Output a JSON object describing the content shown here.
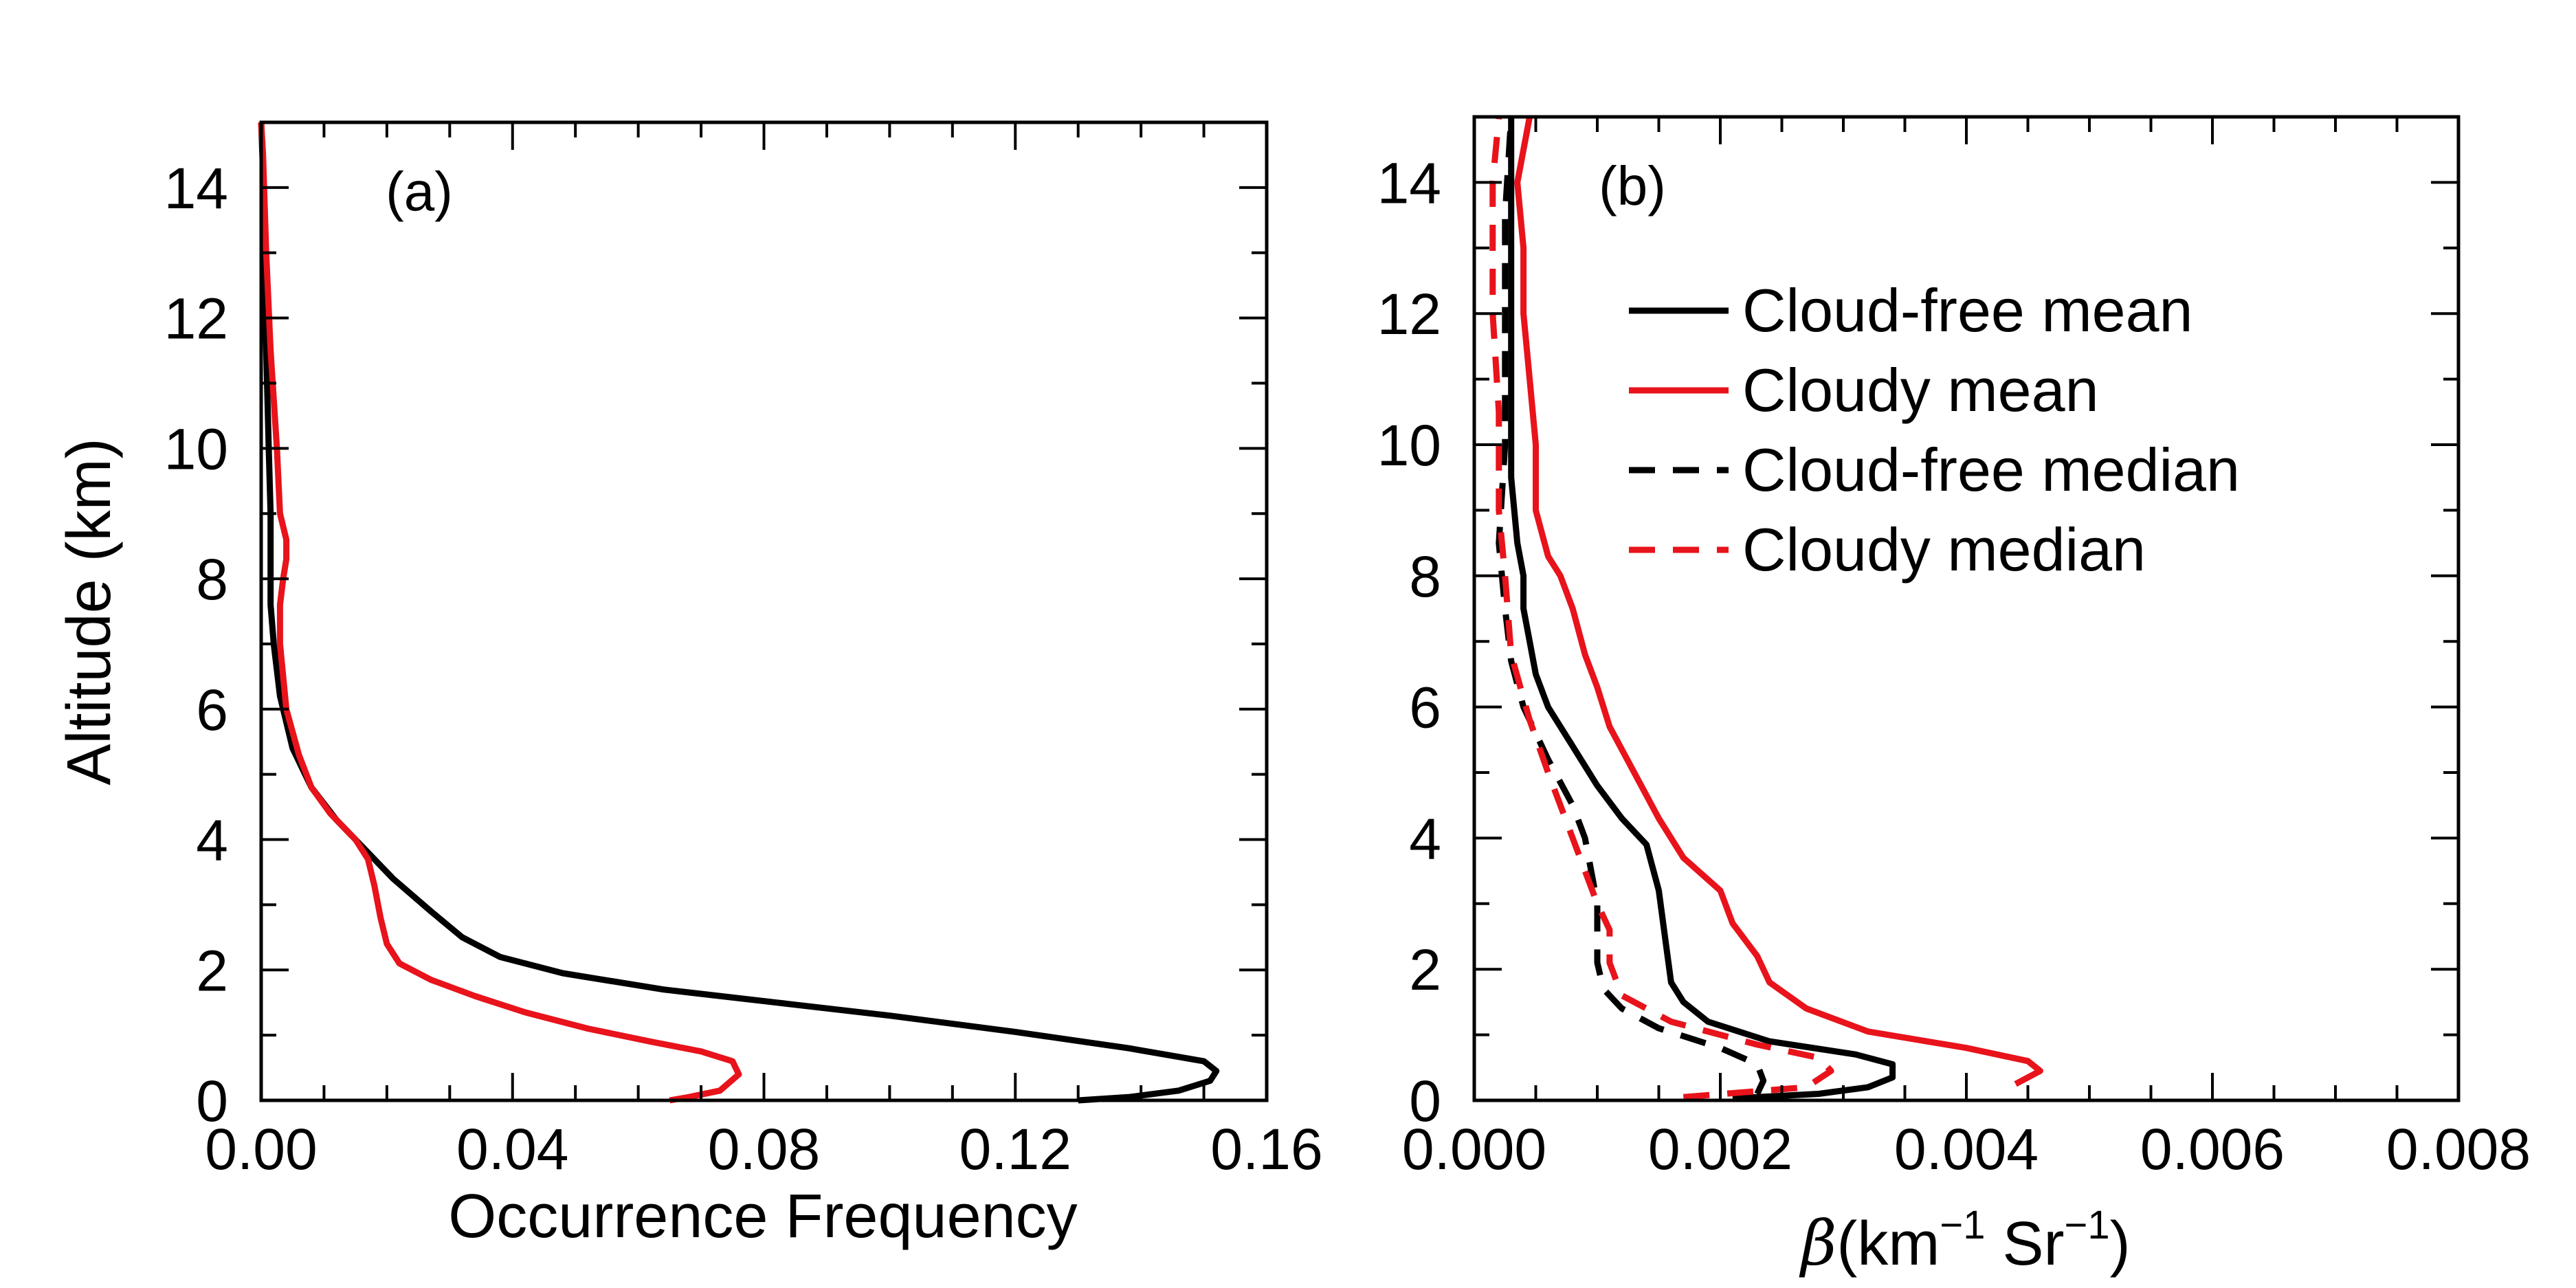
{
  "chart_data": [
    {
      "type": "line",
      "panel_label": "(a)",
      "xlabel": "Occurrence Frequency",
      "ylabel": "Altitude (km)",
      "xlim": [
        0,
        0.16
      ],
      "ylim": [
        0,
        15
      ],
      "xticks": [
        "0.00",
        "0.04",
        "0.08",
        "0.12",
        "0.16"
      ],
      "yticks": [
        "0",
        "2",
        "4",
        "6",
        "8",
        "10",
        "12",
        "14"
      ],
      "grid": false,
      "series": [
        {
          "color": "#000000",
          "dash": "solid",
          "points": [
            [
              0.13,
              0.0
            ],
            [
              0.138,
              0.05
            ],
            [
              0.146,
              0.15
            ],
            [
              0.151,
              0.3
            ],
            [
              0.152,
              0.45
            ],
            [
              0.15,
              0.6
            ],
            [
              0.138,
              0.8
            ],
            [
              0.12,
              1.05
            ],
            [
              0.1,
              1.3
            ],
            [
              0.082,
              1.5
            ],
            [
              0.064,
              1.7
            ],
            [
              0.048,
              1.95
            ],
            [
              0.038,
              2.2
            ],
            [
              0.032,
              2.5
            ],
            [
              0.027,
              2.9
            ],
            [
              0.021,
              3.4
            ],
            [
              0.016,
              3.9
            ],
            [
              0.012,
              4.3
            ],
            [
              0.008,
              4.8
            ],
            [
              0.005,
              5.4
            ],
            [
              0.003,
              6.2
            ],
            [
              0.002,
              7.0
            ],
            [
              0.0015,
              7.6
            ],
            [
              0.0015,
              8.3
            ],
            [
              0.0015,
              9.0
            ],
            [
              0.0012,
              10.0
            ],
            [
              0.0008,
              11.5
            ],
            [
              0.0005,
              13.0
            ],
            [
              0.0002,
              14.5
            ],
            [
              0.0,
              15.0
            ]
          ]
        },
        {
          "color": "#e8131b",
          "dash": "solid",
          "points": [
            [
              0.065,
              0.0
            ],
            [
              0.068,
              0.05
            ],
            [
              0.073,
              0.15
            ],
            [
              0.076,
              0.4
            ],
            [
              0.075,
              0.6
            ],
            [
              0.07,
              0.75
            ],
            [
              0.062,
              0.9
            ],
            [
              0.052,
              1.1
            ],
            [
              0.042,
              1.35
            ],
            [
              0.034,
              1.6
            ],
            [
              0.027,
              1.85
            ],
            [
              0.022,
              2.1
            ],
            [
              0.02,
              2.4
            ],
            [
              0.019,
              2.8
            ],
            [
              0.018,
              3.3
            ],
            [
              0.017,
              3.7
            ],
            [
              0.015,
              4.0
            ],
            [
              0.011,
              4.4
            ],
            [
              0.008,
              4.8
            ],
            [
              0.006,
              5.3
            ],
            [
              0.004,
              6.0
            ],
            [
              0.003,
              7.0
            ],
            [
              0.003,
              7.6
            ],
            [
              0.0035,
              8.0
            ],
            [
              0.004,
              8.3
            ],
            [
              0.004,
              8.6
            ],
            [
              0.003,
              9.0
            ],
            [
              0.0025,
              10.0
            ],
            [
              0.0015,
              11.5
            ],
            [
              0.0008,
              13.0
            ],
            [
              0.0003,
              14.5
            ],
            [
              0.0,
              15.0
            ]
          ]
        }
      ]
    },
    {
      "type": "line",
      "panel_label": "(b)",
      "xlabel_symbol": "β",
      "xlabel_open": "(km",
      "xlabel_exp1": "−1",
      "xlabel_mid": " Sr",
      "xlabel_exp2": "−1",
      "xlabel_close": ")",
      "xlim": [
        0,
        0.008
      ],
      "ylim": [
        0,
        15
      ],
      "xticks": [
        "0.000",
        "0.002",
        "0.004",
        "0.006",
        "0.008"
      ],
      "yticks": [
        "0",
        "2",
        "4",
        "6",
        "8",
        "10",
        "12",
        "14"
      ],
      "grid": false,
      "legend_position": "upper-right",
      "series": [
        {
          "name": "Cloud-free mean",
          "color": "#000000",
          "dash": "solid",
          "points": [
            [
              0.0021,
              0.03
            ],
            [
              0.0028,
              0.1
            ],
            [
              0.0032,
              0.2
            ],
            [
              0.0034,
              0.35
            ],
            [
              0.0034,
              0.55
            ],
            [
              0.0031,
              0.7
            ],
            [
              0.0024,
              0.9
            ],
            [
              0.0019,
              1.2
            ],
            [
              0.0017,
              1.5
            ],
            [
              0.0016,
              1.8
            ],
            [
              0.00155,
              2.5
            ],
            [
              0.0015,
              3.2
            ],
            [
              0.0014,
              3.9
            ],
            [
              0.0012,
              4.3
            ],
            [
              0.001,
              4.8
            ],
            [
              0.0008,
              5.4
            ],
            [
              0.0006,
              6.0
            ],
            [
              0.0005,
              6.5
            ],
            [
              0.00045,
              7.0
            ],
            [
              0.0004,
              7.5
            ],
            [
              0.0004,
              8.0
            ],
            [
              0.00035,
              8.5
            ],
            [
              0.0003,
              9.5
            ],
            [
              0.0003,
              11.0
            ],
            [
              0.0003,
              13.0
            ],
            [
              0.0003,
              15.0
            ]
          ]
        },
        {
          "name": "Cloudy mean",
          "color": "#e8131b",
          "dash": "solid",
          "points": [
            [
              0.0044,
              0.25
            ],
            [
              0.0046,
              0.45
            ],
            [
              0.0045,
              0.6
            ],
            [
              0.004,
              0.8
            ],
            [
              0.0032,
              1.05
            ],
            [
              0.0027,
              1.4
            ],
            [
              0.0024,
              1.8
            ],
            [
              0.0023,
              2.2
            ],
            [
              0.0021,
              2.7
            ],
            [
              0.002,
              3.2
            ],
            [
              0.0017,
              3.7
            ],
            [
              0.0015,
              4.3
            ],
            [
              0.0013,
              5.0
            ],
            [
              0.0011,
              5.7
            ],
            [
              0.001,
              6.3
            ],
            [
              0.0009,
              6.8
            ],
            [
              0.0008,
              7.5
            ],
            [
              0.0007,
              8.0
            ],
            [
              0.0006,
              8.3
            ],
            [
              0.0005,
              9.0
            ],
            [
              0.0005,
              10.0
            ],
            [
              0.00045,
              11.0
            ],
            [
              0.0004,
              12.0
            ],
            [
              0.0004,
              13.0
            ],
            [
              0.00035,
              14.0
            ],
            [
              0.00045,
              15.0
            ]
          ]
        },
        {
          "name": "Cloud-free median",
          "color": "#000000",
          "dash": "dashed",
          "points": [
            [
              0.0023,
              0.1
            ],
            [
              0.00235,
              0.3
            ],
            [
              0.0023,
              0.55
            ],
            [
              0.002,
              0.8
            ],
            [
              0.0015,
              1.1
            ],
            [
              0.0012,
              1.4
            ],
            [
              0.00105,
              1.7
            ],
            [
              0.001,
              2.1
            ],
            [
              0.001,
              2.5
            ],
            [
              0.001,
              3.0
            ],
            [
              0.00095,
              3.5
            ],
            [
              0.0009,
              4.0
            ],
            [
              0.0008,
              4.5
            ],
            [
              0.0006,
              5.2
            ],
            [
              0.0004,
              6.0
            ],
            [
              0.0003,
              6.7
            ],
            [
              0.00025,
              7.5
            ],
            [
              0.0002,
              8.5
            ],
            [
              0.00025,
              10.0
            ],
            [
              0.00025,
              12.0
            ],
            [
              0.00025,
              13.5
            ],
            [
              0.0003,
              15.0
            ]
          ]
        },
        {
          "name": "Cloudy median",
          "color": "#e8131b",
          "dash": "dashed",
          "points": [
            [
              0.0017,
              0.05
            ],
            [
              0.0027,
              0.2
            ],
            [
              0.0029,
              0.45
            ],
            [
              0.0028,
              0.65
            ],
            [
              0.0023,
              0.85
            ],
            [
              0.0016,
              1.2
            ],
            [
              0.0012,
              1.6
            ],
            [
              0.0011,
              2.1
            ],
            [
              0.0011,
              2.6
            ],
            [
              0.001,
              3.0
            ],
            [
              0.0009,
              3.5
            ],
            [
              0.0008,
              4.0
            ],
            [
              0.0007,
              4.5
            ],
            [
              0.0006,
              5.0
            ],
            [
              0.00045,
              5.8
            ],
            [
              0.0003,
              6.8
            ],
            [
              0.00025,
              8.0
            ],
            [
              0.0002,
              9.0
            ],
            [
              0.0002,
              10.5
            ],
            [
              0.00015,
              12.0
            ],
            [
              0.00015,
              14.0
            ],
            [
              0.0002,
              15.0
            ]
          ]
        }
      ]
    }
  ]
}
